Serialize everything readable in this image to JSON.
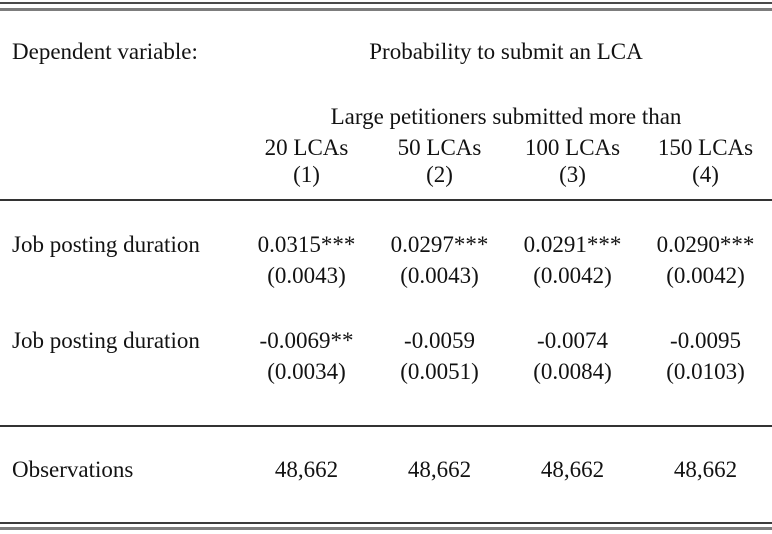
{
  "table": {
    "dep_var": {
      "label": "Dependent variable:",
      "value": "Probability to submit an LCA"
    },
    "header": {
      "group": "Large petitioners submitted more than",
      "columns": [
        "20 LCAs",
        "50 LCAs",
        "100 LCAs",
        "150 LCAs"
      ],
      "model_numbers": [
        "(1)",
        "(2)",
        "(3)",
        "(4)"
      ]
    },
    "rows": [
      {
        "label": "Job posting duration",
        "coefs": [
          "0.0315***",
          "0.0297***",
          "0.0291***",
          "0.0290***"
        ],
        "ses": [
          "(0.0043)",
          "(0.0043)",
          "(0.0042)",
          "(0.0042)"
        ]
      },
      {
        "label": "Job posting duration",
        "coefs": [
          "-0.0069**",
          "-0.0059",
          "-0.0074",
          "-0.0095"
        ],
        "ses": [
          "(0.0034)",
          "(0.0051)",
          "(0.0084)",
          "(0.0103)"
        ]
      }
    ],
    "footer": {
      "label": "Observations",
      "values": [
        "48,662",
        "48,662",
        "48,662",
        "48,662"
      ]
    }
  },
  "colors": {
    "text": "#121212",
    "rule_dark": "#3c3c3c",
    "rule_gray": "#7d7d7d",
    "rule_mid": "#333333",
    "background": "#ffffff"
  }
}
